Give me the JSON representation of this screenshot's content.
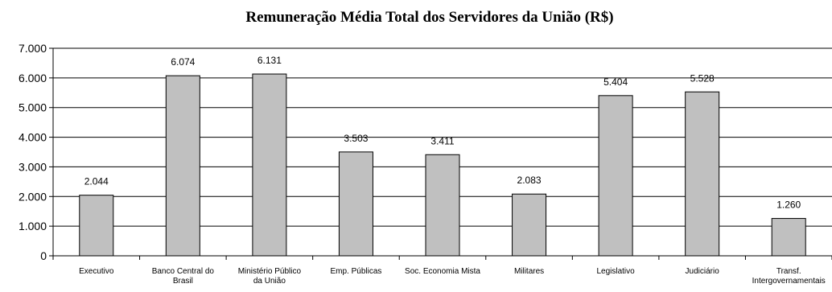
{
  "chart_data": {
    "type": "bar",
    "title": "Remuneração Média Total dos Servidores da União (R$)",
    "xlabel": "",
    "ylabel": "",
    "categories": [
      [
        "Executivo"
      ],
      [
        "Banco Central do",
        "Brasil"
      ],
      [
        "Ministério Público",
        "da União"
      ],
      [
        "Emp. Públicas"
      ],
      [
        "Soc. Economia Mista"
      ],
      [
        "Militares"
      ],
      [
        "Legislativo"
      ],
      [
        "Judiciário"
      ],
      [
        "Transf.",
        "Intergovernamentais"
      ]
    ],
    "values": [
      2044,
      6074,
      6131,
      3503,
      3411,
      2083,
      5404,
      5528,
      1260
    ],
    "value_labels": [
      "2.044",
      "6.074",
      "6.131",
      "3.503",
      "3.411",
      "2.083",
      "5.404",
      "5.528",
      "1.260"
    ],
    "y_ticks": [
      0,
      1000,
      2000,
      3000,
      4000,
      5000,
      6000,
      7000
    ],
    "y_tick_labels": [
      "0",
      "1.000",
      "2.000",
      "3.000",
      "4.000",
      "5.000",
      "6.000",
      "7.000"
    ],
    "ylim": [
      0,
      7000
    ],
    "grid": true,
    "legend": "none",
    "colors": {
      "bar_fill": "#c0c0c0",
      "bar_stroke": "#000000",
      "gridline": "#000000",
      "axis": "#000000"
    }
  }
}
